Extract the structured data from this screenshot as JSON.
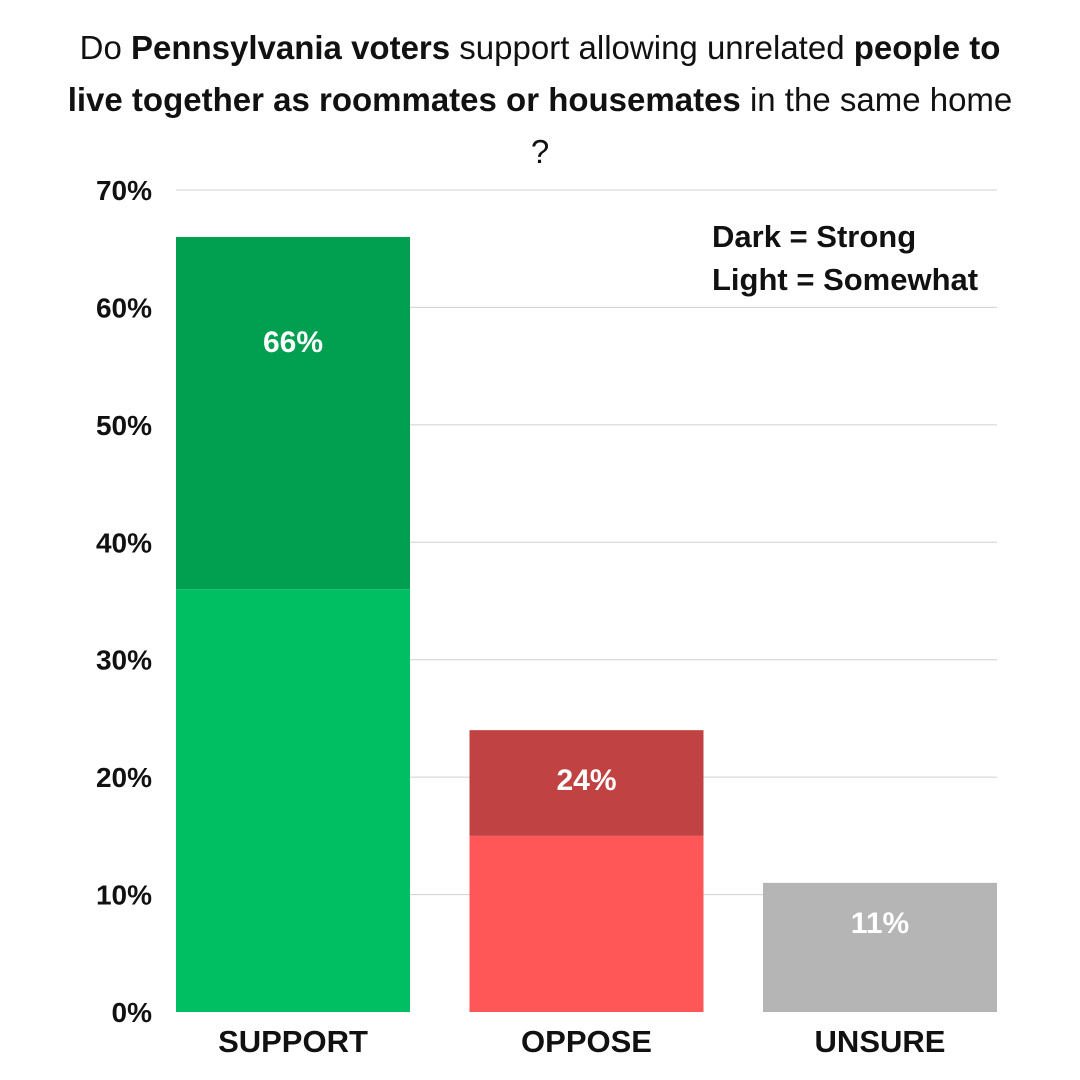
{
  "chart_data": {
    "type": "bar",
    "stacked": true,
    "title_parts": [
      {
        "text": "Do ",
        "bold": false
      },
      {
        "text": "Pennsylvania voters",
        "bold": true
      },
      {
        "text": " support allowing unrelated ",
        "bold": false
      },
      {
        "text": "people to live together as roommates or housemates",
        "bold": true
      },
      {
        "text": " in the same home ?",
        "bold": false
      }
    ],
    "categories": [
      "SUPPORT",
      "OPPOSE",
      "UNSURE"
    ],
    "series": [
      {
        "values": [
          36,
          15,
          11
        ],
        "colors": [
          "#00bf63",
          "#ff5757",
          "#b5b5b5"
        ]
      },
      {
        "values": [
          30,
          9,
          0
        ],
        "colors": [
          "#00a050",
          "#c04242",
          "#b5b5b5"
        ]
      }
    ],
    "totals": [
      66,
      24,
      11
    ],
    "total_labels": [
      "66%",
      "24%",
      "11%"
    ],
    "ylim": [
      0,
      70
    ],
    "yticks": [
      0,
      10,
      20,
      30,
      40,
      50,
      60,
      70
    ],
    "ytick_labels": [
      "0%",
      "10%",
      "20%",
      "30%",
      "40%",
      "50%",
      "60%",
      "70%"
    ],
    "grid": true,
    "legend_lines": [
      "Dark = Strong",
      "Light = Somewhat"
    ],
    "legend_position": "top-right",
    "colors": {
      "grid": "#d0d0d0",
      "text": "#111111",
      "label": "#ffffff"
    }
  }
}
